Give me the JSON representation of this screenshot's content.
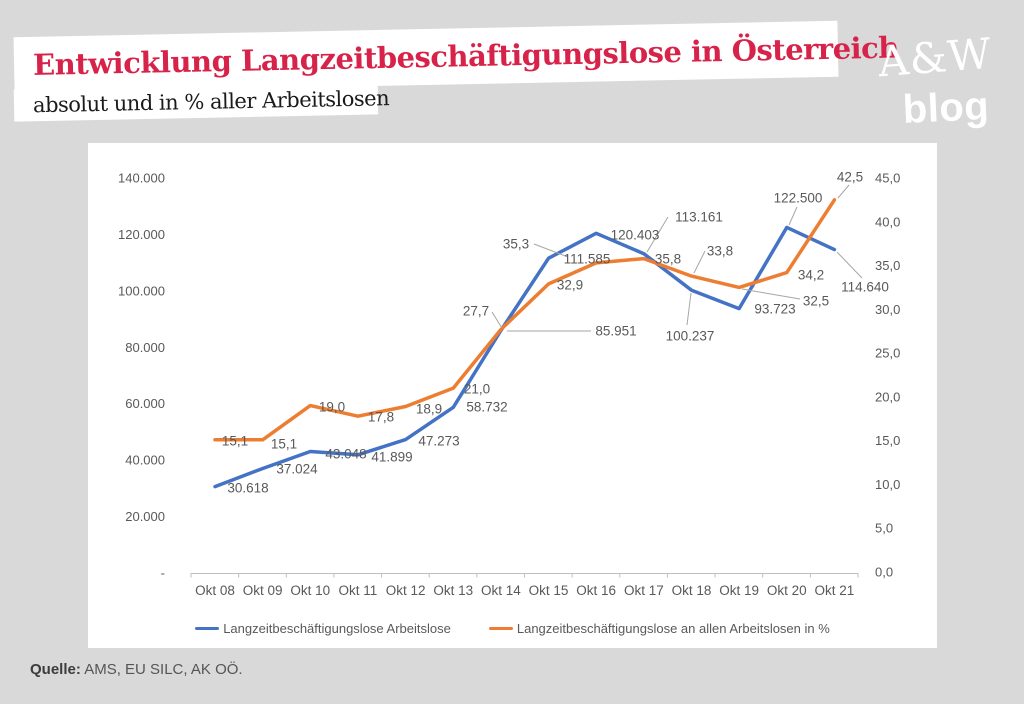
{
  "header": {
    "title": "Entwicklung Langzeitbeschäftigungslose in Österreich",
    "subtitle": "absolut und in % aller Arbeitslosen"
  },
  "logo": {
    "line1": "A&W",
    "line2": "blog",
    "red": "#d7234a"
  },
  "footer": {
    "source_label": "Quelle:",
    "source_text": " AMS, EU SILC, AK OÖ."
  },
  "chart_data": {
    "type": "line",
    "title": "Entwicklung Langzeitbeschäftigungslose in Österreich",
    "subtitle": "absolut und in % aller Arbeitslosen",
    "categories": [
      "Okt 08",
      "Okt 09",
      "Okt 10",
      "Okt 11",
      "Okt 12",
      "Okt 13",
      "Okt 14",
      "Okt 15",
      "Okt 16",
      "Okt 17",
      "Okt 18",
      "Okt 19",
      "Okt 20",
      "Okt 21"
    ],
    "series": [
      {
        "name": "Langzeitbeschäftigungslose Arbeitslose",
        "axis": "left",
        "color": "#4472c4",
        "values": [
          30618,
          37024,
          43048,
          41899,
          47273,
          58732,
          85951,
          111585,
          120403,
          113161,
          100237,
          93723,
          122500,
          114640
        ],
        "labels": [
          "30.618",
          "37.024",
          "43.048",
          "41.899",
          "47.273",
          "58.732",
          "85.951",
          "111.585",
          "120.403",
          "113.161",
          "100.237",
          "93.723",
          "122.500",
          "114.640"
        ]
      },
      {
        "name": "Langzeitbeschäftigungslose an allen Arbeitslosen in %",
        "axis": "right",
        "color": "#ed7d31",
        "values": [
          15.1,
          15.1,
          19.0,
          17.8,
          18.9,
          21.0,
          27.7,
          32.9,
          35.3,
          35.8,
          33.8,
          32.5,
          34.2,
          42.5
        ],
        "labels": [
          "15,1",
          "15,1",
          "19,0",
          "17,8",
          "18,9",
          "21,0",
          "27,7",
          "32,9",
          "35,3",
          "35,8",
          "33,8",
          "32,5",
          "34,2",
          "42,5"
        ]
      }
    ],
    "left_axis": {
      "min": 0,
      "max": 140000,
      "ticks": [
        {
          "label": "140.000",
          "value": 140000
        },
        {
          "label": "120.000",
          "value": 120000
        },
        {
          "label": "100.000",
          "value": 100000
        },
        {
          "label": "80.000",
          "value": 80000
        },
        {
          "label": "60.000",
          "value": 60000
        },
        {
          "label": "40.000",
          "value": 40000
        },
        {
          "label": "20.000",
          "value": 20000
        },
        {
          "label": "-",
          "value": 0
        }
      ]
    },
    "right_axis": {
      "min": 0,
      "max": 45,
      "ticks": [
        {
          "label": "45,0",
          "value": 45
        },
        {
          "label": "40,0",
          "value": 40
        },
        {
          "label": "35,0",
          "value": 35
        },
        {
          "label": "30,0",
          "value": 30
        },
        {
          "label": "25,0",
          "value": 25
        },
        {
          "label": "20,0",
          "value": 20
        },
        {
          "label": "15,0",
          "value": 15
        },
        {
          "label": "10,0",
          "value": 10
        },
        {
          "label": "5,0",
          "value": 5
        },
        {
          "label": "0,0",
          "value": 0
        }
      ]
    },
    "legend_position": "bottom",
    "grid": false,
    "text_color": "#595959",
    "axis_line_color": "#bfbfbf",
    "leader_line_color": "#a6a6a6"
  }
}
